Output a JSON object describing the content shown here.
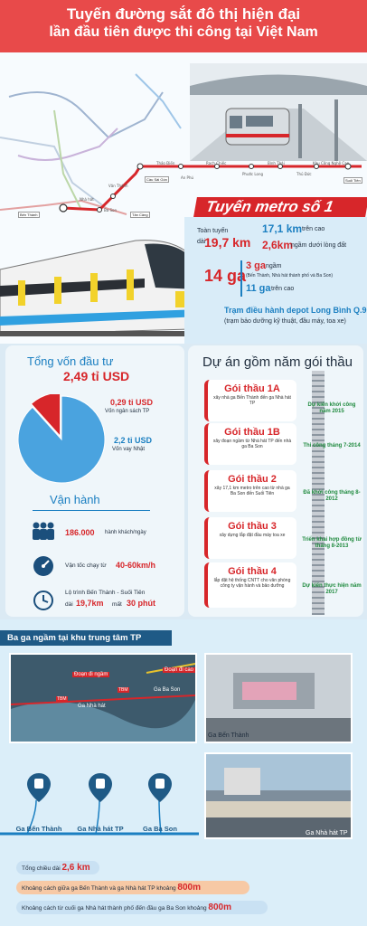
{
  "header": {
    "title_line1": "Tuyến đường sắt đô thị hiện đại",
    "title_line2": "lần đầu tiên được thi công tại Việt Nam"
  },
  "map": {
    "stations": [
      "Thảo Điền",
      "Rạch Chiếc",
      "Phước Long",
      "Bình Thái",
      "Thủ Đức",
      "Khu Công Nghệ Cao",
      "Suối Tiên",
      "Cầu Sài Gòn",
      "An Phú",
      "Văn Thánh",
      "Ba Son",
      "Nhà hát",
      "Bến Thành",
      "Tân Cảng"
    ]
  },
  "metro": {
    "title": "Tuyến metro số 1",
    "route_label": "Toàn tuyến dài",
    "total_length": "19,7 km",
    "elevated_length": "17,1 km",
    "elevated_label": "trên cao",
    "underground_length": "2,6km",
    "underground_label": "ngầm dưới lòng đất",
    "station_count": "14 ga",
    "underground_stations": "3 ga",
    "underground_stations_label": "ngầm",
    "underground_stations_note": "(Bến Thành, Nhà hát thành phố và Ba Son)",
    "elevated_stations": "11 ga",
    "elevated_stations_label": "trên cao",
    "depot_title": "Trạm điều hành depot Long Bình Q.9",
    "depot_note": "(trạm bảo dưỡng kỹ thuật, đầu máy, toa xe)"
  },
  "investment": {
    "title": "Tổng vốn đầu tư",
    "total": "2,49 tỉ USD",
    "budget_value": "0,29 tỉ USD",
    "budget_label": "Vốn ngân sách TP",
    "loan_value": "2,2 tỉ USD",
    "loan_label": "Vốn vay Nhật"
  },
  "chart_data": {
    "type": "pie",
    "values": [
      0.29,
      2.2
    ],
    "categories": [
      "Vốn ngân sách TP",
      "Vốn vay Nhật"
    ],
    "colors": [
      "#d7262a",
      "#4aa3df"
    ]
  },
  "operation": {
    "title": "Vận hành",
    "passengers": "186.000",
    "passengers_label": "hành khách/ngày",
    "speed_label": "Vận tốc chạy từ",
    "speed_value": "40-60km/h",
    "route_label": "Lộ trình Bến Thành - Suối Tiên",
    "route_prefix": "dài",
    "route_length": "19,7km",
    "route_mid": "mất",
    "route_time": "30 phút"
  },
  "packages": {
    "title": "Dự án gồm năm gói thầu",
    "items": [
      {
        "name": "Gói thầu 1A",
        "desc": "xây nhà ga Bến Thành đến ga Nhà hát TP"
      },
      {
        "name": "Gói thầu 1B",
        "desc": "xây đoạn ngầm từ Nhà hát TP đến nhà ga Ba Son"
      },
      {
        "name": "Gói thầu 2",
        "desc": "xây 17,1 km metro trên cao từ nhà ga Ba Son đến Suối Tiên"
      },
      {
        "name": "Gói thầu 3",
        "desc": "xây dựng lắp đặt đầu máy toa xe"
      },
      {
        "name": "Gói thầu 4",
        "desc": "lắp đặt hệ thống CNTT cho văn phòng công ty vận hành và bảo dưỡng"
      }
    ],
    "milestones": [
      "Dự kiến khởi công năm 2015",
      "Thi công tháng 7-2014",
      "Đã khởi công tháng 8-2012",
      "Triển khai hợp đồng từ tháng 8-2013",
      "Dự kiến thực hiện năm 2017"
    ]
  },
  "underground": {
    "banner": "Ba ga ngầm tại khu trung tâm TP",
    "photo_labels": [
      "Đoạn đi ngầm",
      "Đoạn đi cao",
      "Ga Nhà hát",
      "Ga Ba Son",
      "TBM",
      "TBM"
    ],
    "photo_caption_benthanh": "Ga Bến Thành",
    "photo_caption_nhahat": "Ga Nhà hát TP",
    "stations": [
      "Ga Bến Thành",
      "Ga Nhà hát TP",
      "Ga Ba Son"
    ],
    "total_label": "Tổng chiều dài",
    "total_value": "2,6 km",
    "dist1_label": "Khoảng cách giữa ga Bến Thành và ga Nhà hát TP khoảng",
    "dist1_value": "800m",
    "dist2_label": "Khoảng cách từ cuối ga Nhà hát thành phố đến đầu ga Ba Son khoảng",
    "dist2_value": "800m"
  }
}
